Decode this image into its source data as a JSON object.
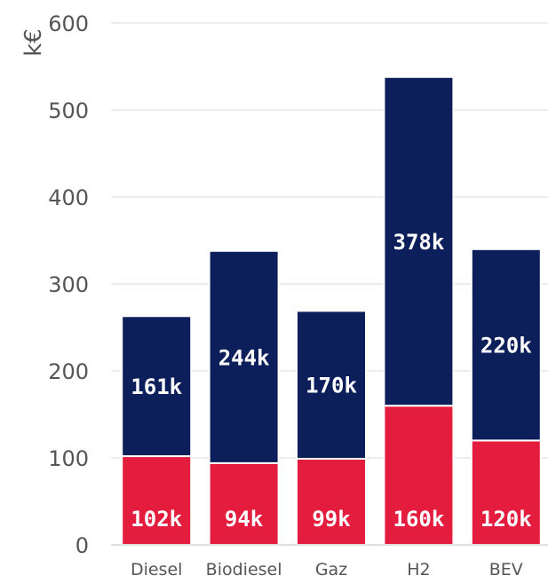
{
  "chart_data": {
    "type": "bar",
    "stacked": true,
    "ylabel": "k€",
    "ylim": [
      0,
      600
    ],
    "yticks": [
      0,
      100,
      200,
      300,
      400,
      500,
      600
    ],
    "grid": true,
    "legend": "none",
    "categories": [
      "Diesel",
      "Biodiesel",
      "Gaz",
      "H2",
      "BEV"
    ],
    "series": [
      {
        "values": [
          102,
          94,
          99,
          160,
          120
        ],
        "labels": [
          "102k",
          "94k",
          "99k",
          "160k",
          "120k"
        ],
        "color": "#e41d3f"
      },
      {
        "values": [
          161,
          244,
          170,
          378,
          220
        ],
        "labels": [
          "161k",
          "244k",
          "170k",
          "378k",
          "220k"
        ],
        "color": "#0c1f5a"
      }
    ]
  }
}
